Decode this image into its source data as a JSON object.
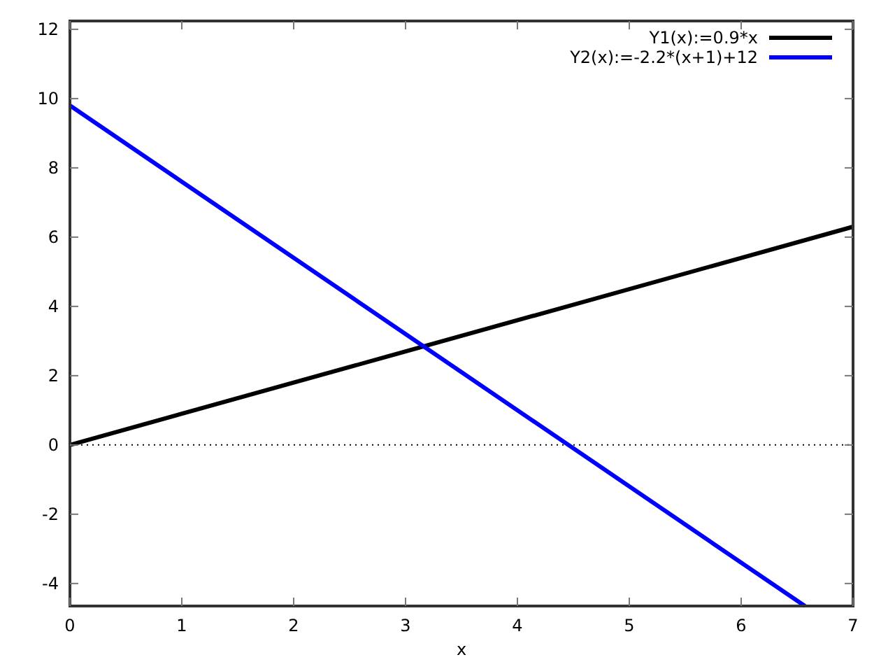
{
  "chart_data": {
    "type": "line",
    "xlabel": "x",
    "xlim": [
      0,
      7
    ],
    "xticks": [
      0,
      1,
      2,
      3,
      4,
      5,
      6,
      7
    ],
    "ylim": [
      -4.65,
      12.24
    ],
    "yticks": [
      -4,
      -2,
      0,
      2,
      4,
      6,
      8,
      10,
      12
    ],
    "grid": false,
    "legend": "top right",
    "marker": "none",
    "line_style": "solid",
    "ref_lines": [
      {
        "axis": "y",
        "value": 0,
        "color": "#000000",
        "line_style": "dotted"
      }
    ],
    "series": [
      {
        "name": "Y1(x):=0.9*x",
        "color": "#000000",
        "x": [
          0,
          7
        ],
        "values": [
          0,
          6.3
        ]
      },
      {
        "name": "Y2(x):=-2.2*(x+1)+12",
        "color": "#0000ff",
        "x": [
          0,
          6.57
        ],
        "values": [
          9.8,
          -4.65
        ]
      }
    ]
  }
}
